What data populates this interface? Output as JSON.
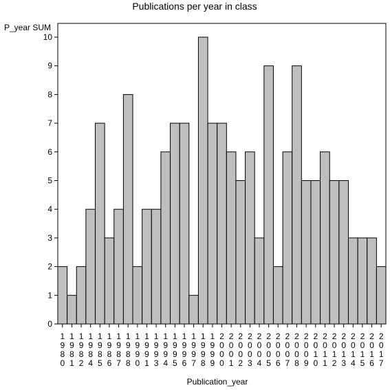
{
  "chart_data": {
    "type": "bar",
    "title": "Publications per year in class",
    "ylabel": "P_year SUM",
    "xlabel": "Publication_year",
    "categories": [
      "1980",
      "1981",
      "1982",
      "1984",
      "1985",
      "1986",
      "1987",
      "1988",
      "1990",
      "1991",
      "1993",
      "1994",
      "1995",
      "1996",
      "1997",
      "1998",
      "1999",
      "2000",
      "2001",
      "2002",
      "2003",
      "2004",
      "2005",
      "2006",
      "2007",
      "2008",
      "2009",
      "2010",
      "2011",
      "2012",
      "2013",
      "2014",
      "2015",
      "2016",
      "2017"
    ],
    "values": [
      2,
      1,
      2,
      4,
      7,
      3,
      4,
      8,
      2,
      4,
      4,
      6,
      7,
      7,
      1,
      10,
      7,
      7,
      6,
      5,
      6,
      3,
      9,
      2,
      6,
      9,
      5,
      5,
      6,
      5,
      5,
      3,
      3,
      3,
      2
    ],
    "yticks": [
      0,
      1,
      2,
      3,
      4,
      5,
      6,
      7,
      8,
      9,
      10
    ],
    "ylim": [
      0,
      10
    ],
    "grid": false,
    "legend": "none",
    "colors": {
      "bar_fill": "#bfbfbf",
      "bar_stroke": "#000000",
      "axis": "#000000"
    }
  }
}
